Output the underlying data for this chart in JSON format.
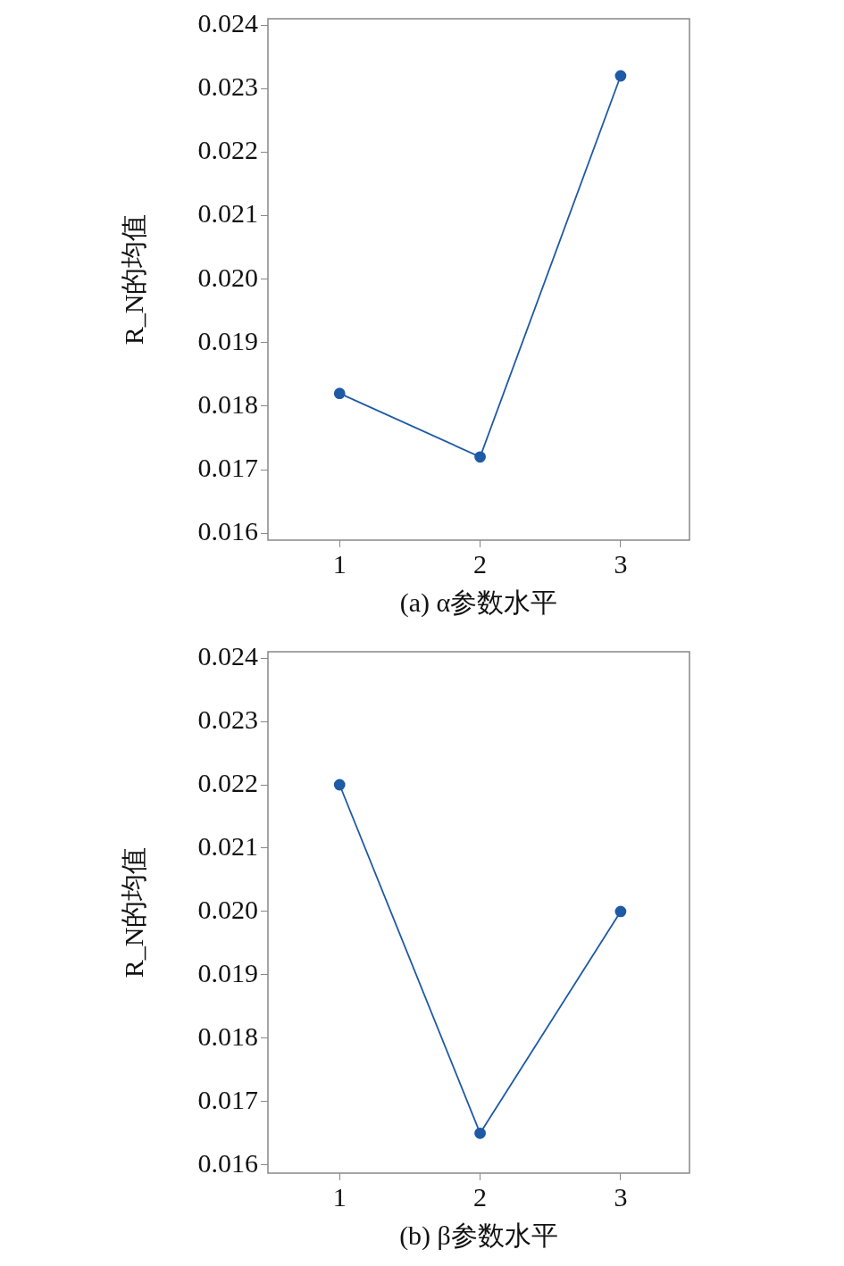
{
  "chart_data": [
    {
      "type": "line",
      "xlabel": "(a) α参数水平",
      "ylabel": "R_N的均值",
      "x": [
        1,
        2,
        3
      ],
      "xlim": [
        0.49,
        3.49
      ],
      "xticks": [
        1,
        2,
        3
      ],
      "ylim": [
        0.01589,
        0.0241
      ],
      "yticks": [
        {
          "value": 0.016,
          "label": "0.016"
        },
        {
          "value": 0.017,
          "label": "0.017"
        },
        {
          "value": 0.018,
          "label": "0.018"
        },
        {
          "value": 0.019,
          "label": "0.019"
        },
        {
          "value": 0.02,
          "label": "0.020"
        },
        {
          "value": 0.021,
          "label": "0.021"
        },
        {
          "value": 0.022,
          "label": "0.022"
        },
        {
          "value": 0.023,
          "label": "0.023"
        },
        {
          "value": 0.024,
          "label": "0.024"
        }
      ],
      "series": [
        {
          "color": "#1f5aa6",
          "values": [
            0.0182,
            0.0172,
            0.0232
          ]
        }
      ],
      "marker": "circle",
      "line_style": "solid",
      "legend": false,
      "grid": false
    },
    {
      "type": "line",
      "xlabel": "(b) β参数水平",
      "ylabel": "R_N的均值",
      "x": [
        1,
        2,
        3
      ],
      "xlim": [
        0.49,
        3.49
      ],
      "xticks": [
        1,
        2,
        3
      ],
      "ylim": [
        0.01587,
        0.0241
      ],
      "yticks": [
        {
          "value": 0.016,
          "label": "0.016"
        },
        {
          "value": 0.017,
          "label": "0.017"
        },
        {
          "value": 0.018,
          "label": "0.018"
        },
        {
          "value": 0.019,
          "label": "0.019"
        },
        {
          "value": 0.02,
          "label": "0.020"
        },
        {
          "value": 0.021,
          "label": "0.021"
        },
        {
          "value": 0.022,
          "label": "0.022"
        },
        {
          "value": 0.023,
          "label": "0.023"
        },
        {
          "value": 0.024,
          "label": "0.024"
        }
      ],
      "series": [
        {
          "color": "#1f5aa6",
          "values": [
            0.022,
            0.0165,
            0.02
          ]
        }
      ],
      "marker": "circle",
      "line_style": "solid",
      "legend": false,
      "grid": false
    }
  ]
}
